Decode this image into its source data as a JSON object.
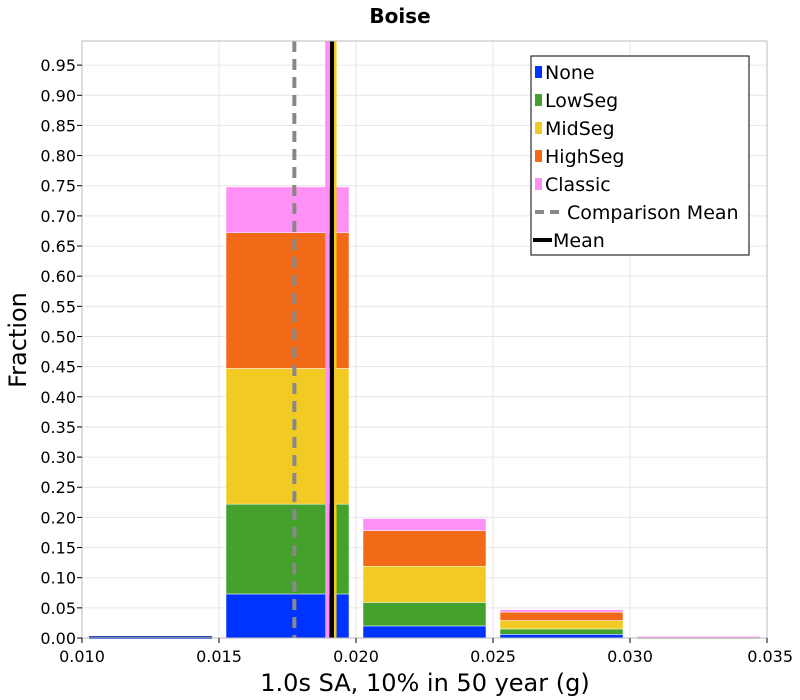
{
  "chart_data": {
    "type": "bar",
    "stacked": true,
    "title": "Boise",
    "xlabel": "1.0s SA, 10% in 50 year (g)",
    "ylabel": "Fraction",
    "xlim": [
      0.01,
      0.035
    ],
    "ylim": [
      0.0,
      0.99
    ],
    "grid": true,
    "legend_position": "top-right",
    "bin_width": 0.005,
    "bins": [
      {
        "start": 0.01,
        "end": 0.015
      },
      {
        "start": 0.015,
        "end": 0.02
      },
      {
        "start": 0.02,
        "end": 0.025
      },
      {
        "start": 0.025,
        "end": 0.03
      },
      {
        "start": 0.03,
        "end": 0.035
      }
    ],
    "series": [
      {
        "name": "None",
        "color": "#0033ff",
        "values": [
          0.0005,
          0.073,
          0.02,
          0.006,
          0.0
        ]
      },
      {
        "name": "LowSeg",
        "color": "#44a12b",
        "values": [
          0.0,
          0.149,
          0.039,
          0.009,
          0.0005
        ]
      },
      {
        "name": "MidSeg",
        "color": "#f2ca24",
        "values": [
          0.0,
          0.225,
          0.06,
          0.014,
          0.001
        ]
      },
      {
        "name": "HighSeg",
        "color": "#f26a18",
        "values": [
          0.0,
          0.225,
          0.059,
          0.014,
          0.001
        ]
      },
      {
        "name": "Classic",
        "color": "#ff90f5",
        "values": [
          0.0,
          0.076,
          0.02,
          0.004,
          0.0002
        ]
      }
    ],
    "lines": [
      {
        "name": "Classic mean",
        "color": "#ff90f5",
        "x": 0.01895,
        "style": "solid",
        "in_legend": false
      },
      {
        "name": "Comparison Mean",
        "color": "#888888",
        "x": 0.01775,
        "style": "dashed",
        "in_legend": true
      },
      {
        "name": "Mid mean",
        "color": "#f2ca24",
        "x": 0.01918,
        "style": "solid",
        "in_legend": false
      },
      {
        "name": "Mean",
        "color": "#000000",
        "x": 0.01912,
        "style": "solid",
        "in_legend": true
      }
    ],
    "xticks": [
      "0.010",
      "0.015",
      "0.020",
      "0.025",
      "0.030",
      "0.035"
    ],
    "xtick_values": [
      0.01,
      0.015,
      0.02,
      0.025,
      0.03,
      0.035
    ],
    "yticks": [
      "0.00",
      "0.05",
      "0.10",
      "0.15",
      "0.20",
      "0.25",
      "0.30",
      "0.35",
      "0.40",
      "0.45",
      "0.50",
      "0.55",
      "0.60",
      "0.65",
      "0.70",
      "0.75",
      "0.80",
      "0.85",
      "0.90",
      "0.95"
    ],
    "ytick_values": [
      0.0,
      0.05,
      0.1,
      0.15,
      0.2,
      0.25,
      0.3,
      0.35,
      0.4,
      0.45,
      0.5,
      0.55,
      0.6,
      0.65,
      0.7,
      0.75,
      0.8,
      0.85,
      0.9,
      0.95
    ],
    "legend": [
      {
        "label": "None",
        "color": "#0033ff",
        "kind": "patch"
      },
      {
        "label": "LowSeg",
        "color": "#44a12b",
        "kind": "patch"
      },
      {
        "label": "MidSeg",
        "color": "#f2ca24",
        "kind": "patch"
      },
      {
        "label": "HighSeg",
        "color": "#f26a18",
        "kind": "patch"
      },
      {
        "label": "Classic",
        "color": "#ff90f5",
        "kind": "patch"
      },
      {
        "label": "Comparison Mean",
        "color": "#888888",
        "kind": "dashed"
      },
      {
        "label": "Mean",
        "color": "#000000",
        "kind": "line"
      }
    ]
  }
}
